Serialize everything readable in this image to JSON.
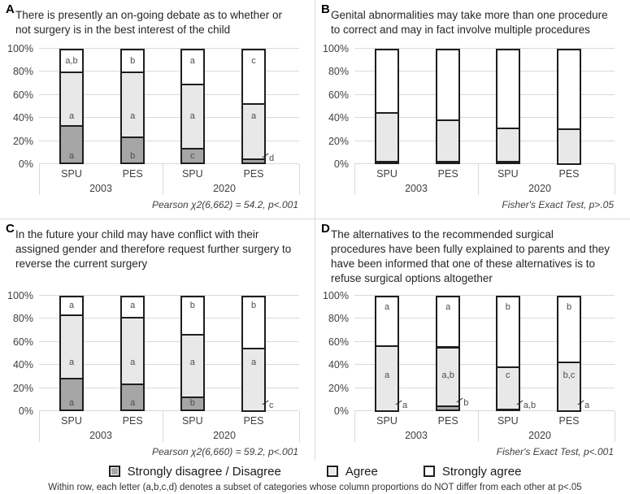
{
  "colors": {
    "dark": "#a6a6a6",
    "light": "#e8e8e8",
    "white": "#ffffff",
    "segment_border": "#1e1e1e",
    "gridline": "#d9d9d9"
  },
  "legend": {
    "items": [
      {
        "label": "Strongly disagree / Disagree",
        "color": "#a6a6a6"
      },
      {
        "label": "Agree",
        "color": "#e8e8e8"
      },
      {
        "label": "Strongly agree",
        "color": "#ffffff"
      }
    ]
  },
  "footnote": "Within row, each letter (a,b,c,d) denotes a subset of categories whose column proportions do NOT differ from each other at p<.05",
  "chart_data": [
    {
      "panel": "A",
      "type": "stacked_bar",
      "title": "There is presently an on-going debate as to whether or not surgery is in the best interest of the child",
      "stat": "Pearson χ2(6,662) = 54.2, p<.001",
      "series": [
        "Strongly disagree / Disagree",
        "Agree",
        "Strongly agree"
      ],
      "categories": [
        "SPU",
        "PES",
        "SPU",
        "PES"
      ],
      "groups": [
        "2003",
        "2020"
      ],
      "ylim": [
        0,
        100
      ],
      "yticks": [
        "0%",
        "20%",
        "40%",
        "60%",
        "80%",
        "100%"
      ],
      "bars": [
        {
          "category": "SPU",
          "group": "2003",
          "values": [
            34,
            46,
            20
          ],
          "letters": [
            {
              "text": "a",
              "y": 3
            },
            {
              "text": "a",
              "y": 37
            },
            {
              "text": "a,b",
              "y": 85
            }
          ]
        },
        {
          "category": "PES",
          "group": "2003",
          "values": [
            24,
            56,
            20
          ],
          "letters": [
            {
              "text": "b",
              "y": 3
            },
            {
              "text": "a",
              "y": 37
            },
            {
              "text": "b",
              "y": 85
            }
          ]
        },
        {
          "category": "SPU",
          "group": "2020",
          "values": [
            14,
            56,
            30
          ],
          "letters": [
            {
              "text": "c",
              "y": 3
            },
            {
              "text": "a",
              "y": 37
            },
            {
              "text": "a",
              "y": 85
            }
          ]
        },
        {
          "category": "PES",
          "group": "2020",
          "values": [
            5,
            48,
            47
          ],
          "letters": [
            {
              "text": "d",
              "y": 1,
              "outside": true
            },
            {
              "text": "a",
              "y": 37
            },
            {
              "text": "c",
              "y": 85
            }
          ]
        }
      ]
    },
    {
      "panel": "B",
      "type": "stacked_bar",
      "title": "Genital abnormalities may take more than one procedure to correct and may in fact involve multiple procedures",
      "stat": "Fisher's Exact Test, p>.05",
      "series": [
        "Strongly disagree / Disagree",
        "Agree",
        "Strongly agree"
      ],
      "categories": [
        "SPU",
        "PES",
        "SPU",
        "PES"
      ],
      "groups": [
        "2003",
        "2020"
      ],
      "ylim": [
        0,
        100
      ],
      "yticks": [
        "0%",
        "20%",
        "40%",
        "60%",
        "80%",
        "100%"
      ],
      "bars": [
        {
          "category": "SPU",
          "group": "2003",
          "values": [
            3,
            42,
            55
          ],
          "letters": []
        },
        {
          "category": "PES",
          "group": "2003",
          "values": [
            3,
            36,
            61
          ],
          "letters": []
        },
        {
          "category": "SPU",
          "group": "2020",
          "values": [
            3,
            29,
            68
          ],
          "letters": []
        },
        {
          "category": "PES",
          "group": "2020",
          "values": [
            1,
            30,
            69
          ],
          "letters": []
        }
      ]
    },
    {
      "panel": "C",
      "type": "stacked_bar",
      "title": "In the future your child may have conflict with their assigned gender and therefore request further surgery to reverse the current surgery",
      "stat": "Pearson χ2(6,660) = 59.2, p<.001",
      "series": [
        "Strongly disagree / Disagree",
        "Agree",
        "Strongly agree"
      ],
      "categories": [
        "SPU",
        "PES",
        "SPU",
        "PES"
      ],
      "groups": [
        "2003",
        "2020"
      ],
      "ylim": [
        0,
        100
      ],
      "yticks": [
        "0%",
        "20%",
        "40%",
        "60%",
        "80%",
        "100%"
      ],
      "bars": [
        {
          "category": "SPU",
          "group": "2003",
          "values": [
            29,
            55,
            16
          ],
          "letters": [
            {
              "text": "a",
              "y": 3
            },
            {
              "text": "a",
              "y": 38
            },
            {
              "text": "a",
              "y": 87
            }
          ]
        },
        {
          "category": "PES",
          "group": "2003",
          "values": [
            24,
            58,
            18
          ],
          "letters": [
            {
              "text": "a",
              "y": 3
            },
            {
              "text": "a",
              "y": 38
            },
            {
              "text": "a",
              "y": 87
            }
          ]
        },
        {
          "category": "SPU",
          "group": "2020",
          "values": [
            13,
            54,
            33
          ],
          "letters": [
            {
              "text": "b",
              "y": 3
            },
            {
              "text": "a",
              "y": 38
            },
            {
              "text": "b",
              "y": 87
            }
          ]
        },
        {
          "category": "PES",
          "group": "2020",
          "values": [
            1,
            54,
            45
          ],
          "letters": [
            {
              "text": "c",
              "y": 1,
              "outside": true
            },
            {
              "text": "a",
              "y": 38
            },
            {
              "text": "b",
              "y": 87
            }
          ]
        }
      ]
    },
    {
      "panel": "D",
      "type": "stacked_bar",
      "title": "The alternatives to the recommended surgical procedures have been fully explained to parents and they have been informed that one of these alternatives is to refuse surgical options altogether",
      "stat": "Fisher's Exact Test, p<.001",
      "series": [
        "Strongly disagree / Disagree",
        "Agree",
        "Strongly agree"
      ],
      "categories": [
        "SPU",
        "PES",
        "SPU",
        "PES"
      ],
      "groups": [
        "2003",
        "2020"
      ],
      "ylim": [
        0,
        100
      ],
      "yticks": [
        "0%",
        "20%",
        "40%",
        "60%",
        "80%",
        "100%"
      ],
      "bars": [
        {
          "category": "SPU",
          "group": "2003",
          "values": [
            1,
            56,
            43
          ],
          "letters": [
            {
              "text": "a",
              "y": 1,
              "outside": true
            },
            {
              "text": "a",
              "y": 27
            },
            {
              "text": "a",
              "y": 86
            }
          ]
        },
        {
          "category": "PES",
          "group": "2003",
          "values": [
            5,
            51,
            44
          ],
          "letters": [
            {
              "text": "b",
              "y": 3,
              "outside": true
            },
            {
              "text": "a,b",
              "y": 27
            },
            {
              "text": "a",
              "y": 86
            }
          ]
        },
        {
          "category": "SPU",
          "group": "2020",
          "values": [
            2,
            37,
            61
          ],
          "letters": [
            {
              "text": "a,b",
              "y": 1,
              "outside": true
            },
            {
              "text": "c",
              "y": 27
            },
            {
              "text": "b",
              "y": 86
            }
          ]
        },
        {
          "category": "PES",
          "group": "2020",
          "values": [
            1,
            42,
            57
          ],
          "letters": [
            {
              "text": "a",
              "y": 1,
              "outside": true
            },
            {
              "text": "b,c",
              "y": 27
            },
            {
              "text": "b",
              "y": 86
            }
          ]
        }
      ]
    }
  ]
}
